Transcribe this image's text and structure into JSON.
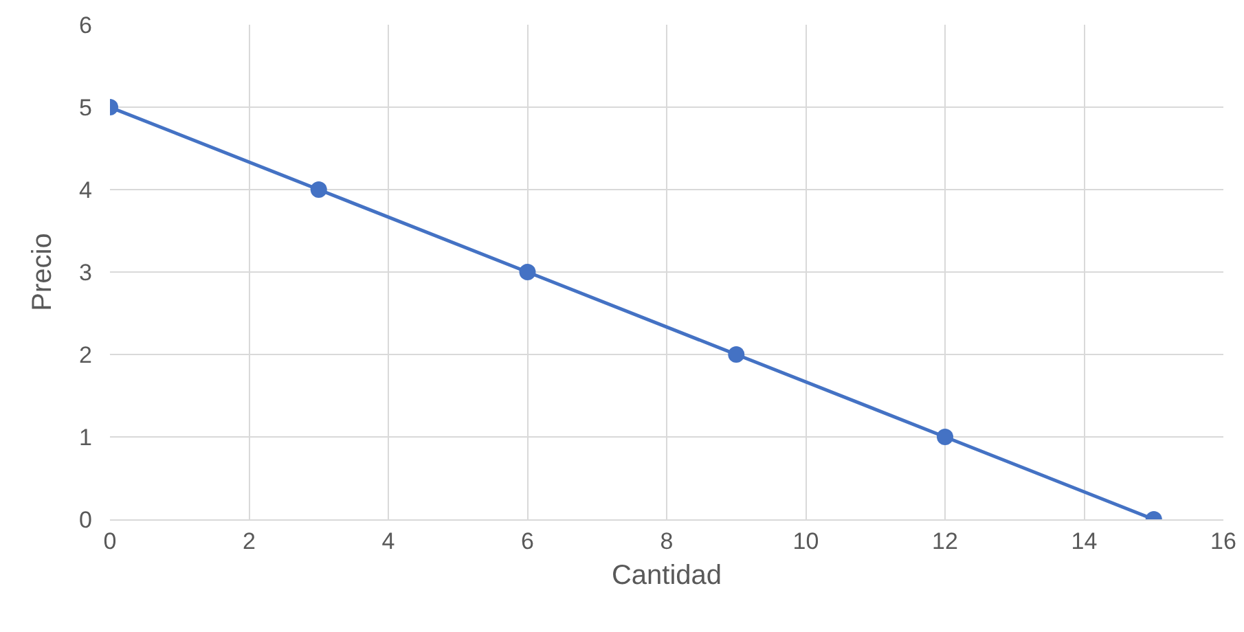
{
  "chart_data": {
    "type": "line",
    "xlabel": "Cantidad",
    "ylabel": "Precio",
    "x": [
      0,
      3,
      6,
      9,
      12,
      15
    ],
    "series": [
      {
        "color": "#4472c4",
        "values": [
          5,
          4,
          3,
          2,
          1,
          0
        ]
      }
    ],
    "xlim": [
      0,
      16
    ],
    "xticks": [
      0,
      2,
      4,
      6,
      8,
      10,
      12,
      14,
      16
    ],
    "ylim": [
      0,
      6
    ],
    "yticks": [
      0,
      1,
      2,
      3,
      4,
      5,
      6
    ],
    "grid": true,
    "marker": "circle",
    "line_style": "solid"
  }
}
